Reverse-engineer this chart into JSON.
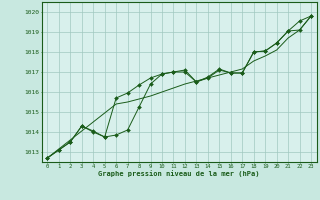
{
  "title": "Graphe pression niveau de la mer (hPa)",
  "bg_color": "#c8e8e0",
  "plot_bg_color": "#d8f0ec",
  "grid_color": "#a0c8c0",
  "line_color": "#1a5c1a",
  "marker_color": "#1a5c1a",
  "xlim": [
    -0.5,
    23.5
  ],
  "ylim": [
    1012.5,
    1020.5
  ],
  "yticks": [
    1013,
    1014,
    1015,
    1016,
    1017,
    1018,
    1019,
    1020
  ],
  "xticks": [
    0,
    1,
    2,
    3,
    4,
    5,
    6,
    7,
    8,
    9,
    10,
    11,
    12,
    13,
    14,
    15,
    16,
    17,
    18,
    19,
    20,
    21,
    22,
    23
  ],
  "series1": [
    1012.7,
    1013.1,
    1013.5,
    1014.3,
    1014.0,
    1013.75,
    1013.85,
    1014.1,
    1015.25,
    1016.4,
    1016.9,
    1017.0,
    1017.1,
    1016.5,
    1016.75,
    1017.15,
    1016.95,
    1016.95,
    1018.0,
    1018.05,
    1018.45,
    1019.05,
    1019.55,
    1019.8
  ],
  "series2": [
    1012.7,
    1013.1,
    1013.5,
    1014.3,
    1014.05,
    1013.75,
    1015.7,
    1015.95,
    1016.35,
    1016.7,
    1016.9,
    1017.0,
    1017.0,
    1016.5,
    1016.7,
    1017.1,
    1016.95,
    1016.95,
    1018.0,
    1018.05,
    1018.45,
    1019.05,
    1019.1,
    1019.8
  ],
  "series3_straight": [
    1012.7,
    1013.15,
    1013.6,
    1014.05,
    1014.5,
    1014.95,
    1015.4,
    1015.5,
    1015.65,
    1015.8,
    1016.0,
    1016.2,
    1016.4,
    1016.55,
    1016.7,
    1016.85,
    1017.0,
    1017.15,
    1017.55,
    1017.8,
    1018.1,
    1018.7,
    1019.1,
    1019.8
  ]
}
